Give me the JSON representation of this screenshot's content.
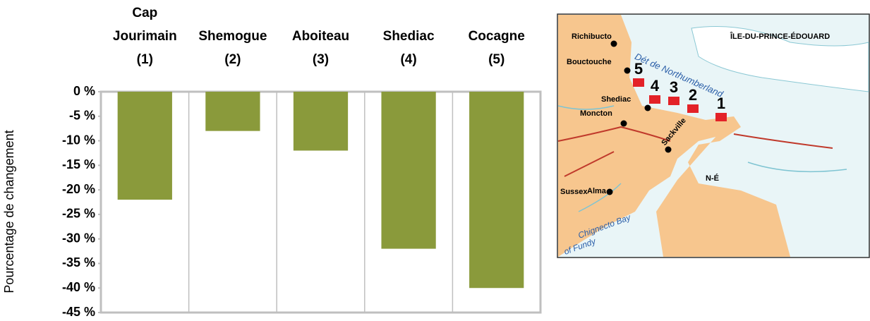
{
  "chart_data": {
    "type": "bar",
    "categories": [
      "Cap\nJourimain\n(1)",
      "Shemogue\n(2)",
      "Aboiteau\n(3)",
      "Shediac\n(4)",
      "Cocagne\n(5)"
    ],
    "values": [
      -22,
      -8,
      -12,
      -32,
      -40
    ],
    "color": "#8a9a3b",
    "ylabel": "Pourcentage de changement",
    "ylim": [
      -45,
      0
    ],
    "yticks": [
      {
        "value": 0,
        "label": "0 %"
      },
      {
        "value": -5,
        "label": "-5 %"
      },
      {
        "value": -10,
        "label": "-10 %"
      },
      {
        "value": -15,
        "label": "-15 %"
      },
      {
        "value": -20,
        "label": "-20 %"
      },
      {
        "value": -25,
        "label": "-25 %"
      },
      {
        "value": -30,
        "label": "-30 %"
      },
      {
        "value": -35,
        "label": "-35 %"
      },
      {
        "value": -40,
        "label": "-40 %"
      },
      {
        "value": -45,
        "label": "-45 %"
      }
    ],
    "grid": true
  },
  "map": {
    "labels": [
      "Richibucto",
      "Bouctouche",
      "Shediac",
      "Moncton",
      "Sackville",
      "Sussex",
      "Alma",
      "ÎLE-DU-PRINCE-ÉDOUARD",
      "N-É",
      "Dét de Northumberland",
      "Chignecto Bay",
      "of Fundy"
    ],
    "site_numbers": [
      "1",
      "2",
      "3",
      "4",
      "5"
    ]
  }
}
